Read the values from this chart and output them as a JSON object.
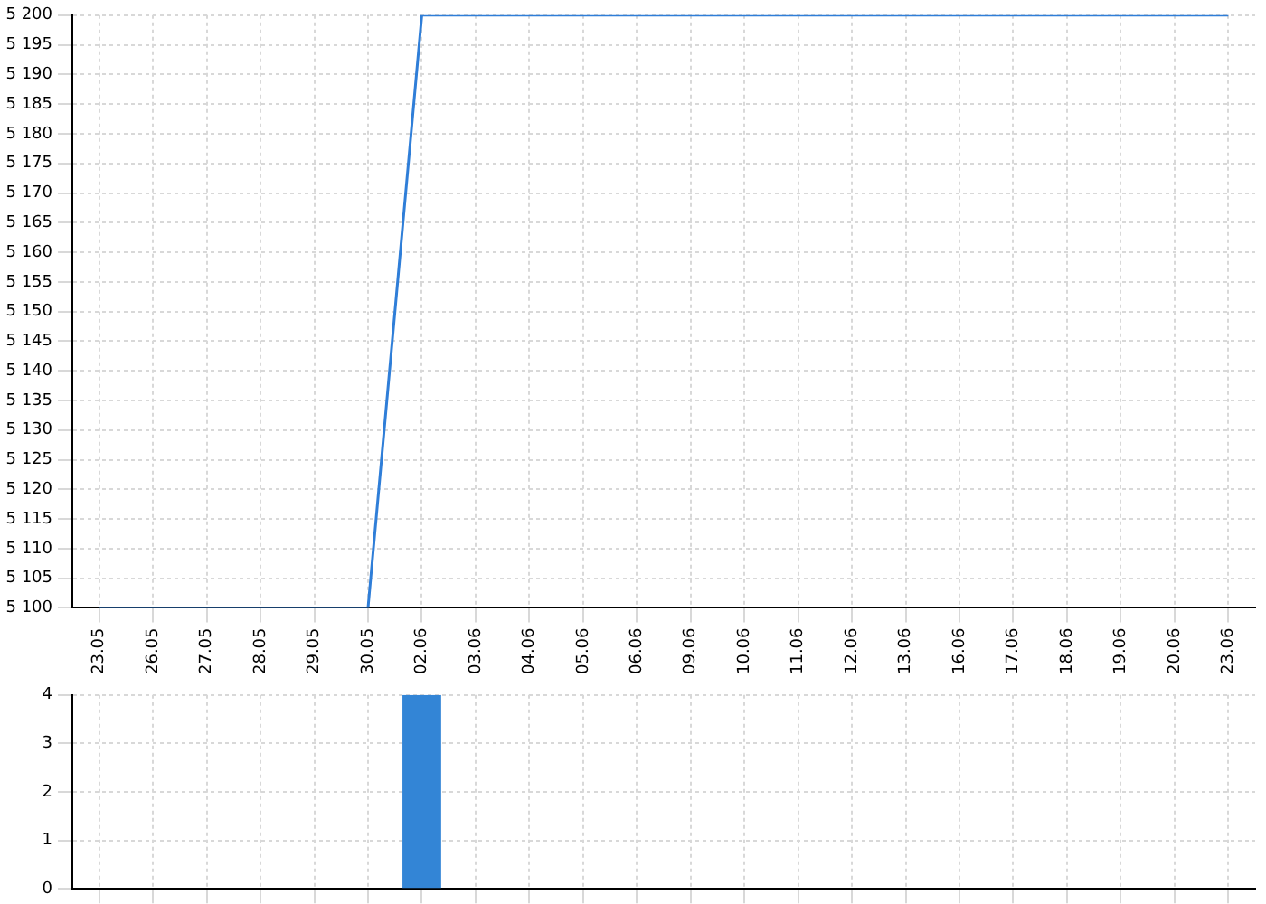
{
  "chart_data": [
    {
      "type": "line",
      "categories": [
        "23.05",
        "26.05",
        "27.05",
        "28.05",
        "29.05",
        "30.05",
        "02.06",
        "03.06",
        "04.06",
        "05.06",
        "06.06",
        "09.06",
        "10.06",
        "11.06",
        "12.06",
        "13.06",
        "16.06",
        "17.06",
        "18.06",
        "19.06",
        "20.06",
        "23.06"
      ],
      "values": [
        5100,
        5100,
        5100,
        5100,
        5100,
        5100,
        5200,
        5200,
        5200,
        5200,
        5200,
        5200,
        5200,
        5200,
        5200,
        5200,
        5200,
        5200,
        5200,
        5200,
        5200,
        5200
      ],
      "color": "#2f7ed8",
      "marker": "none",
      "grid": true,
      "ylim": [
        5100,
        5200
      ],
      "yticks": [
        {
          "value": 5100,
          "label": "5 100"
        },
        {
          "value": 5105,
          "label": "5 105"
        },
        {
          "value": 5110,
          "label": "5 110"
        },
        {
          "value": 5115,
          "label": "5 115"
        },
        {
          "value": 5120,
          "label": "5 120"
        },
        {
          "value": 5125,
          "label": "5 125"
        },
        {
          "value": 5130,
          "label": "5 130"
        },
        {
          "value": 5135,
          "label": "5 135"
        },
        {
          "value": 5140,
          "label": "5 140"
        },
        {
          "value": 5145,
          "label": "5 145"
        },
        {
          "value": 5150,
          "label": "5 150"
        },
        {
          "value": 5155,
          "label": "5 155"
        },
        {
          "value": 5160,
          "label": "5 160"
        },
        {
          "value": 5165,
          "label": "5 165"
        },
        {
          "value": 5170,
          "label": "5 170"
        },
        {
          "value": 5175,
          "label": "5 175"
        },
        {
          "value": 5180,
          "label": "5 180"
        },
        {
          "value": 5185,
          "label": "5 185"
        },
        {
          "value": 5190,
          "label": "5 190"
        },
        {
          "value": 5195,
          "label": "5 195"
        },
        {
          "value": 5200,
          "label": "5 200"
        }
      ]
    },
    {
      "type": "bar",
      "categories": [
        "23.05",
        "26.05",
        "27.05",
        "28.05",
        "29.05",
        "30.05",
        "02.06",
        "03.06",
        "04.06",
        "05.06",
        "06.06",
        "09.06",
        "10.06",
        "11.06",
        "12.06",
        "13.06",
        "16.06",
        "17.06",
        "18.06",
        "19.06",
        "20.06",
        "23.06"
      ],
      "values": [
        0,
        0,
        0,
        0,
        0,
        0,
        4,
        0,
        0,
        0,
        0,
        0,
        0,
        0,
        0,
        0,
        0,
        0,
        0,
        0,
        0,
        0
      ],
      "color": "#3385d6",
      "grid": true,
      "ylim": [
        0,
        4
      ],
      "yticks": [
        0,
        1,
        2,
        3,
        4
      ],
      "tick_labels": "y"
    }
  ]
}
